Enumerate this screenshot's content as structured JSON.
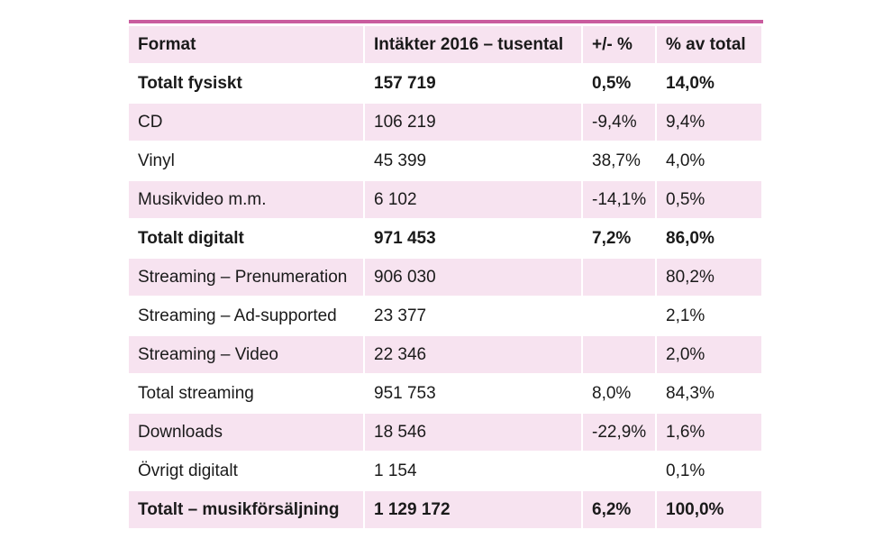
{
  "table": {
    "headers": [
      "Format",
      "Intäkter 2016 – tusental",
      "+/- %",
      "% av total"
    ],
    "rows": [
      {
        "cells": [
          "Totalt fysiskt",
          "157 719",
          "0,5%",
          "14,0%"
        ],
        "bold": true,
        "shaded": false
      },
      {
        "cells": [
          "CD",
          "106 219",
          "-9,4%",
          "9,4%"
        ],
        "bold": false,
        "shaded": true
      },
      {
        "cells": [
          "Vinyl",
          "45 399",
          "38,7%",
          "4,0%"
        ],
        "bold": false,
        "shaded": false
      },
      {
        "cells": [
          "Musikvideo m.m.",
          "6 102",
          "-14,1%",
          "0,5%"
        ],
        "bold": false,
        "shaded": true
      },
      {
        "cells": [
          "Totalt digitalt",
          "971 453",
          "7,2%",
          "86,0%"
        ],
        "bold": true,
        "shaded": false
      },
      {
        "cells": [
          "Streaming – Prenumeration",
          "906 030",
          "",
          "80,2%"
        ],
        "bold": false,
        "shaded": true
      },
      {
        "cells": [
          "Streaming – Ad-supported",
          "23 377",
          "",
          "2,1%"
        ],
        "bold": false,
        "shaded": false
      },
      {
        "cells": [
          "Streaming – Video",
          "22 346",
          "",
          "2,0%"
        ],
        "bold": false,
        "shaded": true
      },
      {
        "cells": [
          "Total streaming",
          "951 753",
          "8,0%",
          "84,3%"
        ],
        "bold": false,
        "shaded": false
      },
      {
        "cells": [
          "Downloads",
          "18 546",
          "-22,9%",
          "1,6%"
        ],
        "bold": false,
        "shaded": true
      },
      {
        "cells": [
          "Övrigt digitalt",
          "1 154",
          "",
          "0,1%"
        ],
        "bold": false,
        "shaded": false
      },
      {
        "cells": [
          "Totalt – musikförsäljning",
          "1 129 172",
          "6,2%",
          "100,0%"
        ],
        "bold": true,
        "shaded": true
      }
    ]
  },
  "colors": {
    "accent_rule": "#c95c9e",
    "row_shade": "#f7e3f0"
  }
}
